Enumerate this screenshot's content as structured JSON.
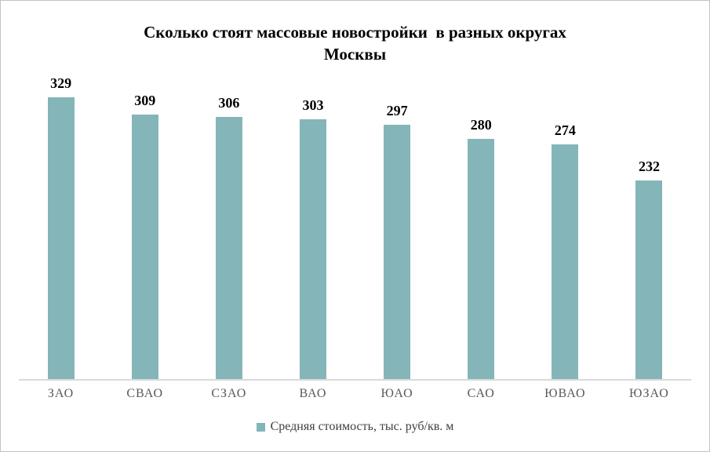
{
  "header": {
    "title_line1": "Сколько стоят массовые новостройки  в разных округах",
    "title_line2": "Москвы"
  },
  "chart_data": {
    "type": "bar",
    "title": "Сколько стоят массовые новостройки в разных округах Москвы",
    "categories": [
      "ЗАО",
      "СВАО",
      "СЗАО",
      "ВАО",
      "ЮАО",
      "САО",
      "ЮВАО",
      "ЮЗАО"
    ],
    "values": [
      329,
      309,
      306,
      303,
      297,
      280,
      274,
      232
    ],
    "series_name": "Средняя стоимость, тыс. руб/кв. м",
    "xlabel": "",
    "ylabel": "",
    "ylim": [
      0,
      350
    ],
    "grid": false,
    "data_labels": true,
    "legend_position": "bottom",
    "y_axis_visible": false
  },
  "legend": {
    "label": "Средняя стоимость, тыс. руб/кв. м"
  },
  "colors": {
    "bar": "#84b5b8",
    "legend_marker": "#84b5b8",
    "axis_line": "#d9d9d9",
    "category_label": "#595959",
    "value_label": "#000000",
    "title": "#000000",
    "border": "#c3c3c3"
  }
}
